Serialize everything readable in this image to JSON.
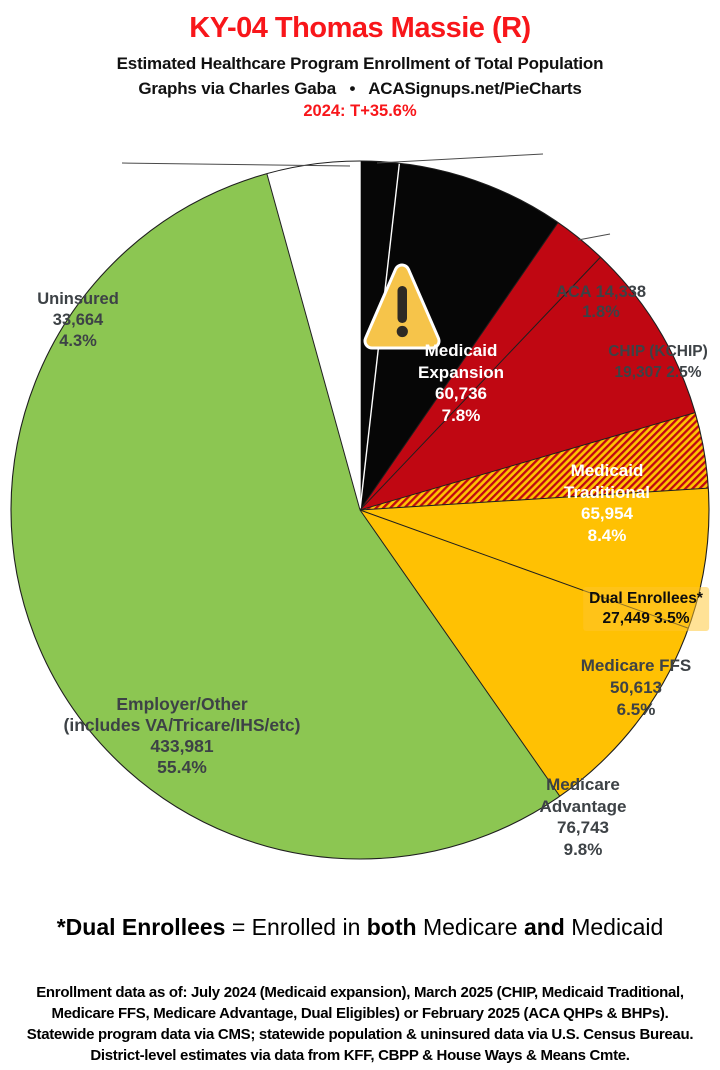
{
  "header": {
    "title": "KY-04 Thomas Massie (R)",
    "subtitle1": "Estimated Healthcare Program Enrollment of Total Population",
    "subtitle2": "Graphs via Charles Gaba   •   ACASignups.net/PieCharts",
    "margin_note": "2024: T+35.6%",
    "title_color": "#f8161a",
    "margin_note_color": "#f8161a"
  },
  "chart_data": {
    "type": "pie",
    "title": "Estimated Healthcare Program Enrollment of Total Population",
    "district": "KY-04",
    "representative": "Thomas Massie (R)",
    "direction": "clockwise",
    "start_angle_deg": 0,
    "palette": {
      "black": "#060606",
      "red": "#c00712",
      "gold": "#ffc103",
      "green": "#8cc652",
      "white": "#ffffff",
      "hatch_stripe": "#c00712",
      "hatch_bg": "#ffc103",
      "rim": "#1f1f1f",
      "divider_light": "#ffffff",
      "divider_dark": "#1f1f1f"
    },
    "slices": [
      {
        "label": "ACA",
        "value": 14338,
        "pct": 1.8,
        "color": "black",
        "edge": "light"
      },
      {
        "label": "Medicaid Expansion",
        "value": 60736,
        "pct": 7.8,
        "color": "black",
        "edge": "light"
      },
      {
        "label": "CHIP (KCHIP)",
        "value": 19307,
        "pct": 2.5,
        "color": "red",
        "edge": "dark"
      },
      {
        "label": "Medicaid Traditional",
        "value": 65954,
        "pct": 8.4,
        "color": "red",
        "edge": "dark"
      },
      {
        "label": "Dual Enrollees*",
        "value": 27449,
        "pct": 3.5,
        "color": "hatch",
        "edge": "dark"
      },
      {
        "label": "Medicare FFS",
        "value": 50613,
        "pct": 6.5,
        "color": "gold",
        "edge": "dark"
      },
      {
        "label": "Medicare Advantage",
        "value": 76743,
        "pct": 9.8,
        "color": "gold",
        "edge": "dark"
      },
      {
        "label": "Employer/Other (includes VA/Tricare/IHS/etc)",
        "value": 433981,
        "pct": 55.4,
        "color": "green",
        "edge": "dark"
      },
      {
        "label": "Uninsured",
        "value": 33664,
        "pct": 4.3,
        "color": "white",
        "edge": "dark"
      }
    ]
  },
  "callouts": {
    "uninsured": [
      "Uninsured",
      "33,664",
      "4.3%"
    ],
    "aca": [
      "ACA 14,338",
      "1.8%"
    ],
    "chip": [
      "CHIP (KCHIP)",
      "19,307 2.5%"
    ],
    "expansion": [
      "Medicaid",
      "Expansion",
      "60,736",
      "7.8%"
    ],
    "traditional": [
      "Medicaid",
      "Traditional",
      "65,954",
      "8.4%"
    ],
    "dual": [
      "Dual Enrollees*",
      "27,449 3.5%"
    ],
    "ffs": [
      "Medicare FFS",
      "50,613",
      "6.5%"
    ],
    "advantage": [
      "Medicare",
      "Advantage",
      "76,743",
      "9.8%"
    ],
    "employer": [
      "Employer/Other",
      "(includes VA/Tricare/IHS/etc)",
      "433,981",
      "55.4%"
    ]
  },
  "footnote": {
    "bold1": "*Dual Enrollees",
    "reg1": " = Enrolled in ",
    "bold2": "both",
    "reg2": " Medicare ",
    "bold3": "and",
    "reg3": " Medicaid"
  },
  "fine_print": [
    "Enrollment data as of: July 2024 (Medicaid expansion), March 2025 (CHIP, Medicaid Traditional,",
    "Medicare FFS, Medicare Advantage, Dual Eligibles) or February 2025 (ACA QHPs & BHPs).",
    "Statewide program data via CMS; statewide population & uninsured data via U.S. Census Bureau.",
    "District-level estimates via data from KFF, CBPP & House Ways & Means Cmte."
  ]
}
